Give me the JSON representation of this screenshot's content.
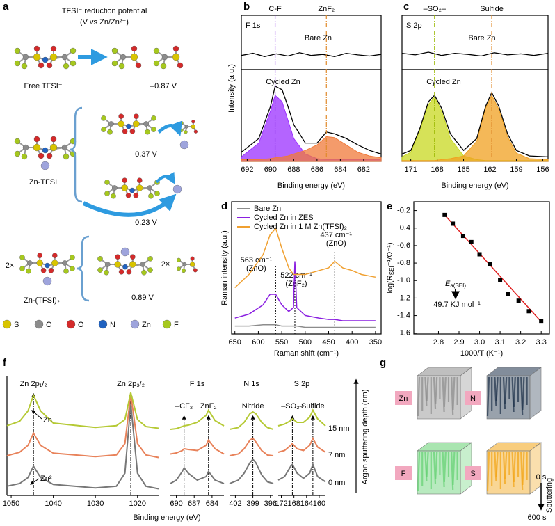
{
  "figure": {
    "panel_labels": [
      "a",
      "b",
      "c",
      "d",
      "e",
      "f",
      "g"
    ]
  },
  "diagram": {
    "a": {
      "title": "TFSI⁻ reduction potential",
      "subtitle": "(V vs Zn/Zn²⁺)",
      "rows": [
        {
          "label": "Free TFSI⁻",
          "potentials": [
            "–0.87 V"
          ]
        },
        {
          "label": "Zn-TFSI",
          "potentials": [
            "0.37 V",
            "0.23 V"
          ]
        },
        {
          "label": "Zn-(TFSI)₂",
          "prefix": "2×",
          "product_prefix": "2×",
          "potentials": [
            "0.89 V"
          ]
        }
      ],
      "atoms": [
        {
          "label": "S",
          "color": "#d8c400"
        },
        {
          "label": "C",
          "color": "#8c8c8c"
        },
        {
          "label": "O",
          "color": "#d42a2a"
        },
        {
          "label": "N",
          "color": "#2062c0"
        },
        {
          "label": "Zn",
          "color": "#9ea4dc"
        },
        {
          "label": "F",
          "color": "#a6c81e"
        }
      ]
    },
    "g": {
      "elements": [
        {
          "label": "Zn",
          "color": "#8a8a8a"
        },
        {
          "label": "N",
          "color": "#1c3048"
        },
        {
          "label": "F",
          "color": "#62d070"
        },
        {
          "label": "S",
          "color": "#f2a414"
        }
      ],
      "time_start": "0 s",
      "time_end": "600 s",
      "axis_label": "Sputtering"
    }
  },
  "chart_data": [
    {
      "type": "xps",
      "title": "F 1s",
      "title_color": "#3caa3c",
      "xlabel": "Binding energy (eV)",
      "ylabel": "Intensity (a.u.)",
      "xlim": [
        692.5,
        680.5
      ],
      "xticks": [
        692,
        690,
        688,
        686,
        684,
        682
      ],
      "markers": [
        {
          "label": "C-F",
          "x": 689.6,
          "color": "#8a2be2"
        },
        {
          "label": "ZnF₂",
          "x": 685.2,
          "color": "#e08a2a"
        }
      ],
      "subplots": [
        {
          "label": "Bare Zn",
          "ylim": [
            0,
            1
          ],
          "x": [
            692.5,
            691.5,
            690.5,
            689.5,
            688.5,
            687.5,
            686.5,
            685.5,
            684.5,
            683.5,
            682.5,
            681.5,
            680.5
          ],
          "series": [
            {
              "color": "#000000",
              "values": [
                0.26,
                0.3,
                0.24,
                0.29,
                0.25,
                0.31,
                0.26,
                0.28,
                0.24,
                0.3,
                0.27,
                0.25,
                0.28
              ]
            }
          ]
        },
        {
          "label": "Cycled Zn",
          "ylim": [
            0,
            1
          ],
          "x": [
            692.5,
            691,
            690,
            689.6,
            689,
            688.5,
            688,
            687,
            686,
            685.2,
            684.5,
            683.5,
            682.5,
            681.5,
            680.5
          ],
          "series": [
            {
              "color": "#9b30ff",
              "fill": true,
              "values": [
                0.05,
                0.2,
                0.55,
                0.72,
                0.65,
                0.45,
                0.25,
                0.08,
                0.03,
                0.02,
                0.02,
                0.02,
                0.02,
                0.02,
                0.02
              ]
            },
            {
              "color": "#f07a3a",
              "fill": true,
              "values": [
                0.02,
                0.02,
                0.03,
                0.04,
                0.05,
                0.06,
                0.08,
                0.12,
                0.18,
                0.27,
                0.26,
                0.18,
                0.1,
                0.06,
                0.04
              ]
            },
            {
              "color": "#000000",
              "values": [
                0.1,
                0.25,
                0.6,
                0.82,
                0.78,
                0.6,
                0.4,
                0.2,
                0.2,
                0.32,
                0.3,
                0.25,
                0.18,
                0.12,
                0.08
              ]
            }
          ]
        }
      ]
    },
    {
      "type": "xps",
      "title": "S 2p",
      "title_color": "#e02020",
      "xlabel": "Binding energy (eV)",
      "xlim": [
        172,
        155.4
      ],
      "xticks": [
        171,
        168,
        165,
        162,
        159,
        156
      ],
      "markers": [
        {
          "label": "–SO₂–",
          "x": 168.3,
          "color": "#9ab800"
        },
        {
          "label": "Sulfide",
          "x": 161.8,
          "color": "#e08a2a"
        }
      ],
      "subplots": [
        {
          "label": "Bare Zn",
          "ylim": [
            0,
            1
          ],
          "x": [
            172,
            170.5,
            169,
            167.5,
            166,
            164.5,
            163,
            161.5,
            160,
            158.5,
            157,
            155.4
          ],
          "series": [
            {
              "color": "#000000",
              "values": [
                0.3,
                0.27,
                0.32,
                0.26,
                0.3,
                0.28,
                0.25,
                0.31,
                0.27,
                0.29,
                0.26,
                0.3
              ]
            }
          ]
        },
        {
          "label": "Cycled Zn",
          "ylim": [
            0,
            1
          ],
          "x": [
            172,
            171,
            170,
            169,
            168.3,
            167.5,
            166.5,
            165,
            163.5,
            162.5,
            161.8,
            161,
            160,
            159,
            157.5,
            155.4
          ],
          "series": [
            {
              "color": "#c8d820",
              "fill": true,
              "values": [
                0.05,
                0.1,
                0.33,
                0.62,
                0.7,
                0.55,
                0.25,
                0.06,
                0.02,
                0.01,
                0.01,
                0.01,
                0.01,
                0.01,
                0.01,
                0.01
              ]
            },
            {
              "color": "#f0a020",
              "fill": true,
              "values": [
                0.01,
                0.01,
                0.01,
                0.01,
                0.01,
                0.02,
                0.03,
                0.06,
                0.22,
                0.58,
                0.72,
                0.57,
                0.27,
                0.09,
                0.03,
                0.02
              ]
            },
            {
              "color": "#000000",
              "values": [
                0.08,
                0.12,
                0.35,
                0.65,
                0.72,
                0.58,
                0.3,
                0.12,
                0.25,
                0.6,
                0.75,
                0.6,
                0.3,
                0.12,
                0.06,
                0.05
              ]
            }
          ]
        }
      ]
    },
    {
      "type": "raman",
      "xlabel": "Raman shift (cm⁻¹)",
      "ylabel": "Raman intensity (a.u.)",
      "legend": "top-left",
      "xlim": [
        657,
        338
      ],
      "xticks": [
        650,
        600,
        550,
        500,
        450,
        400,
        350
      ],
      "ylim": [
        0,
        1
      ],
      "x": [
        650,
        620,
        590,
        575,
        563,
        550,
        535,
        525,
        522,
        518,
        500,
        470,
        450,
        437,
        420,
        400,
        380,
        350
      ],
      "series": [
        {
          "name": "Bare Zn",
          "color": "#8c8c8c",
          "values": [
            0.06,
            0.06,
            0.07,
            0.07,
            0.07,
            0.06,
            0.06,
            0.06,
            0.06,
            0.06,
            0.05,
            0.05,
            0.05,
            0.05,
            0.05,
            0.05,
            0.05,
            0.05
          ]
        },
        {
          "name": "Cycled Zn in ZES",
          "color": "#8a1fe0",
          "values": [
            0.12,
            0.15,
            0.22,
            0.3,
            0.3,
            0.22,
            0.17,
            0.2,
            0.55,
            0.2,
            0.14,
            0.12,
            0.11,
            0.11,
            0.1,
            0.1,
            0.1,
            0.1
          ]
        },
        {
          "name": "Cycled Zn in 1 M Zn(TFSI)₂",
          "color": "#f0a030",
          "values": [
            0.35,
            0.45,
            0.6,
            0.75,
            0.8,
            0.65,
            0.5,
            0.45,
            0.45,
            0.45,
            0.45,
            0.48,
            0.5,
            0.55,
            0.5,
            0.48,
            0.45,
            0.43
          ]
        }
      ],
      "peaks": [
        {
          "x": 563,
          "label": "563 cm⁻¹",
          "note": "(ZnO)",
          "color": "#000000"
        },
        {
          "x": 522,
          "label": "522 cm⁻¹",
          "note": "(ZnF₂)",
          "color": "#e02020"
        },
        {
          "x": 437,
          "label": "437 cm⁻¹",
          "note": "(ZnO)",
          "color": "#000000"
        }
      ]
    },
    {
      "type": "scatter",
      "xlabel": "1000/T (K⁻¹)",
      "ylabel": [
        "log(R",
        "SEI",
        "⁻¹/Ω⁻¹)"
      ],
      "xlim": [
        2.68,
        3.34
      ],
      "xticks": [
        2.8,
        2.9,
        {
          "value": 3,
          "label": "3.0"
        },
        3.1,
        3.2,
        3.3
      ],
      "ylim": [
        -1.61,
        -0.1
      ],
      "yticks": [
        -0.2,
        -0.4,
        -0.6,
        -0.8,
        {
          "value": -1,
          "label": "-1.0"
        },
        -1.2,
        -1.4,
        -1.6
      ],
      "x": [
        2.83,
        2.87,
        2.92,
        2.96,
        3.0,
        3.05,
        3.1,
        3.14,
        3.19,
        3.24,
        3.3
      ],
      "series": [
        {
          "color": "#000000",
          "values": [
            -0.25,
            -0.35,
            -0.49,
            -0.56,
            -0.7,
            -0.81,
            -0.99,
            -1.15,
            -1.23,
            -1.35,
            -1.46
          ]
        }
      ],
      "fit": {
        "color": "#e02020",
        "x": [
          2.83,
          3.3
        ],
        "values": [
          -0.25,
          -1.47
        ]
      },
      "annotation": {
        "label": [
          "E",
          "a(SEI)"
        ],
        "value": "49.7 KJ mol⁻¹"
      }
    },
    {
      "type": "xps-depth",
      "xlabel": "Binding energy (eV)",
      "depth_axis": "Argon sputtering depth (nm)",
      "depth_labels": [
        "0 nm",
        "7 nm",
        "15 nm"
      ],
      "metal_label": "Zn",
      "ion_label": "Zn²⁺",
      "subplots": [
        {
          "title": "",
          "xlim": [
            1051,
            1015
          ],
          "xticks": [
            1050,
            1040,
            1030,
            1020
          ],
          "markers": [
            {
              "label": "Zn 2p₁/₂",
              "x": 1044.7,
              "color": "#000000"
            },
            {
              "label": "Zn 2p₃/₂",
              "x": 1021.6,
              "color": "#000000"
            }
          ],
          "x": [
            1051,
            1048,
            1046,
            1044.7,
            1043,
            1040,
            1030,
            1025,
            1023,
            1021.6,
            1020,
            1018,
            1015
          ],
          "series": [
            {
              "color": "#777777",
              "values": [
                0.05,
                0.08,
                0.15,
                0.28,
                0.15,
                0.07,
                0.03,
                0.05,
                0.2,
                1.0,
                0.2,
                0.05,
                0.02
              ]
            },
            {
              "color": "#e8825a",
              "values": [
                0.04,
                0.08,
                0.16,
                0.3,
                0.16,
                0.07,
                0.03,
                0.05,
                0.18,
                0.75,
                0.18,
                0.05,
                0.02
              ]
            },
            {
              "color": "#b5c934",
              "values": [
                0.05,
                0.1,
                0.22,
                0.4,
                0.22,
                0.08,
                0.03,
                0.05,
                0.12,
                0.43,
                0.12,
                0.04,
                0.02
              ]
            }
          ]
        },
        {
          "title": "F 1s",
          "xlim": [
            691,
            682
          ],
          "xticks": [
            690,
            687,
            684
          ],
          "markers": [
            {
              "label": "–CF₃",
              "x": 688.7,
              "color": "#a020c0"
            },
            {
              "label": "ZnF₂",
              "x": 684.6,
              "color": "#2a9a2a"
            }
          ],
          "x": [
            691,
            690,
            689,
            688.7,
            688,
            686.5,
            685,
            684.6,
            683.5,
            682
          ],
          "series": [
            {
              "color": "#777777",
              "values": [
                0.1,
                0.2,
                0.45,
                0.55,
                0.4,
                0.2,
                0.3,
                0.45,
                0.2,
                0.1
              ]
            },
            {
              "color": "#e8825a",
              "values": [
                0.15,
                0.18,
                0.25,
                0.3,
                0.28,
                0.25,
                0.4,
                0.55,
                0.3,
                0.15
              ]
            },
            {
              "color": "#b5c934",
              "values": [
                0.1,
                0.12,
                0.18,
                0.2,
                0.22,
                0.3,
                0.5,
                0.65,
                0.35,
                0.2
              ]
            }
          ]
        },
        {
          "title": "N 1s",
          "xlim": [
            403,
            395.5
          ],
          "xticks": [
            402,
            399,
            396
          ],
          "markers": [
            {
              "label": "Nitride",
              "x": 399,
              "color": "#000000"
            }
          ],
          "x": [
            403,
            401.5,
            400.5,
            399.5,
            399,
            398.5,
            397.5,
            396.5,
            395.5
          ],
          "series": [
            {
              "color": "#777777",
              "values": [
                0.1,
                0.2,
                0.4,
                0.7,
                0.8,
                0.7,
                0.35,
                0.15,
                0.1
              ]
            },
            {
              "color": "#e8825a",
              "values": [
                0.1,
                0.15,
                0.3,
                0.55,
                0.6,
                0.5,
                0.25,
                0.12,
                0.1
              ]
            },
            {
              "color": "#b5c934",
              "values": [
                0.1,
                0.15,
                0.3,
                0.55,
                0.6,
                0.55,
                0.3,
                0.15,
                0.1
              ]
            }
          ]
        },
        {
          "title": "S 2p",
          "xlim": [
            173,
            158
          ],
          "xticks": [
            172,
            168,
            164,
            160
          ],
          "markers": [
            {
              "label": "–SO₂–",
              "x": 168.5,
              "color": "#000000"
            },
            {
              "label": "Sulfide",
              "x": 162,
              "color": "#c89000"
            }
          ],
          "x": [
            173,
            171,
            169,
            168.5,
            167,
            165,
            163,
            162,
            160.5,
            158
          ],
          "series": [
            {
              "color": "#777777",
              "values": [
                0.2,
                0.3,
                0.6,
                0.65,
                0.4,
                0.25,
                0.4,
                0.65,
                0.3,
                0.15
              ]
            },
            {
              "color": "#e8825a",
              "values": [
                0.2,
                0.25,
                0.4,
                0.45,
                0.3,
                0.25,
                0.4,
                0.6,
                0.35,
                0.2
              ]
            },
            {
              "color": "#b5c934",
              "values": [
                0.2,
                0.25,
                0.35,
                0.4,
                0.3,
                0.3,
                0.45,
                0.65,
                0.4,
                0.2
              ]
            }
          ]
        }
      ]
    }
  ]
}
